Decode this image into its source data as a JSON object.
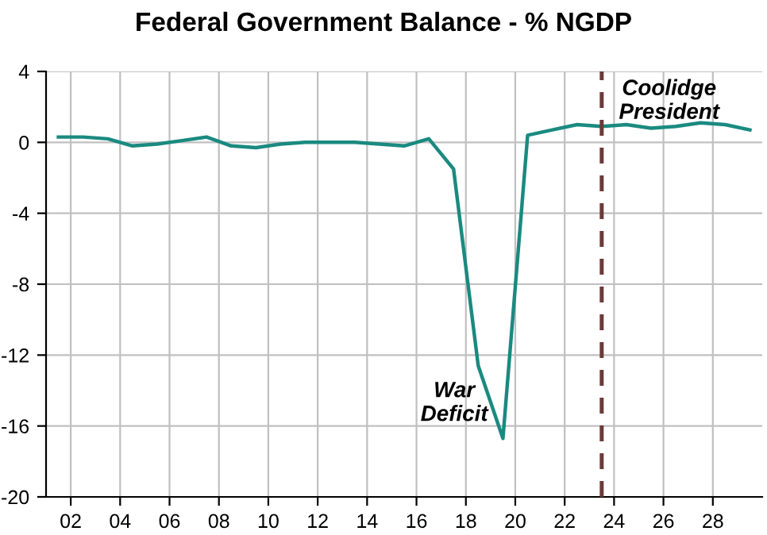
{
  "chart_data": {
    "type": "line",
    "title": "Federal Government Balance - % NGDP",
    "x": [
      1.5,
      2.5,
      3.5,
      4.5,
      5.5,
      6.5,
      7.5,
      8.5,
      9.5,
      10.5,
      11.5,
      12.5,
      13.5,
      14.5,
      15.5,
      16.5,
      17.5,
      18.5,
      19.5,
      20.5,
      21.5,
      22.5,
      23.5,
      24.5,
      25.5,
      26.5,
      27.5,
      28.5,
      29.5
    ],
    "series": [
      {
        "color": "#1a8a80",
        "values": [
          0.3,
          0.3,
          0.2,
          -0.2,
          -0.1,
          0.1,
          0.3,
          -0.2,
          -0.3,
          -0.1,
          0,
          0,
          0,
          -0.1,
          -0.2,
          0.2,
          -1.5,
          -12.6,
          -16.7,
          0.4,
          0.7,
          1.0,
          0.9,
          1.0,
          0.8,
          0.9,
          1.1,
          1.0,
          0.7
        ]
      }
    ],
    "xlim": [
      1,
      30
    ],
    "xticks": [
      {
        "value": 2,
        "label": "02"
      },
      {
        "value": 4,
        "label": "04"
      },
      {
        "value": 6,
        "label": "06"
      },
      {
        "value": 8,
        "label": "08"
      },
      {
        "value": 10,
        "label": "10"
      },
      {
        "value": 12,
        "label": "12"
      },
      {
        "value": 14,
        "label": "14"
      },
      {
        "value": 16,
        "label": "16"
      },
      {
        "value": 18,
        "label": "18"
      },
      {
        "value": 20,
        "label": "20"
      },
      {
        "value": 22,
        "label": "22"
      },
      {
        "value": 24,
        "label": "24"
      },
      {
        "value": 26,
        "label": "26"
      },
      {
        "value": 28,
        "label": "28"
      }
    ],
    "ylim": [
      -20,
      4
    ],
    "yticks": [
      -20,
      -16,
      -12,
      -8,
      -4,
      0,
      4
    ],
    "grid": true,
    "line_style": "solid",
    "marker": "none",
    "ref_lines": [
      {
        "axis": "x",
        "value": 23.5,
        "color": "#6b3a3a",
        "line_style": "dashed"
      }
    ],
    "annotations": [
      "War\nDeficit",
      "Coolidge\nPresident"
    ]
  }
}
